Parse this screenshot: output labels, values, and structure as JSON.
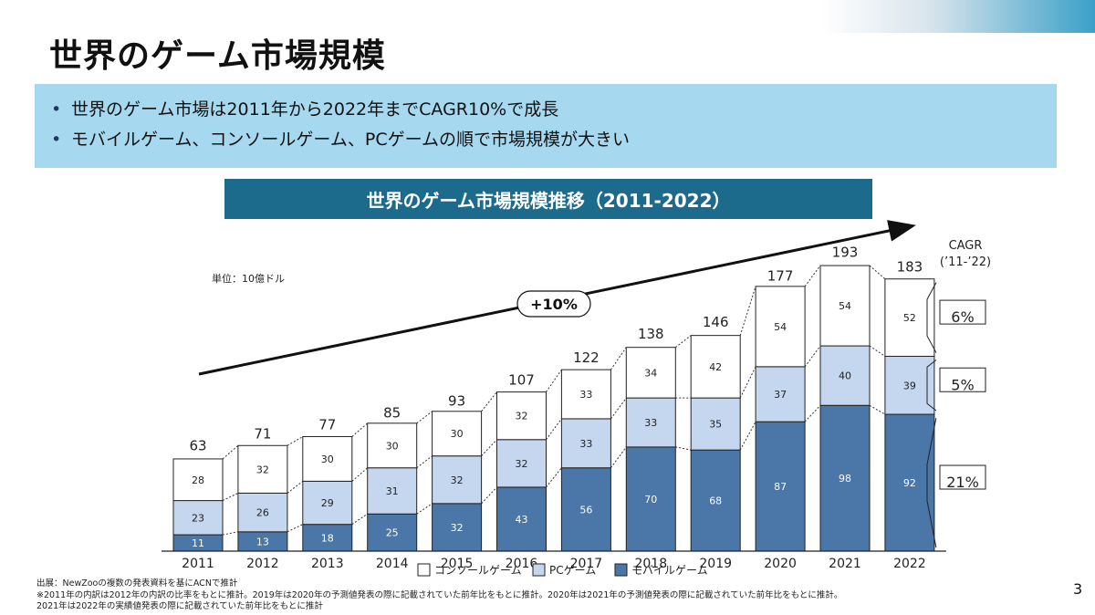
{
  "page": {
    "title": "世界のゲーム市場規模",
    "bullets": [
      "世界のゲーム市場は2011年から2022年までCAGR10%で成長",
      "モバイルゲーム、コンソールゲーム、PCゲームの順で市場規模が大きい"
    ],
    "chart_title": "世界のゲーム市場規模推移（2011-2022）",
    "footnotes": [
      "出展：NewZooの複数の発表資料を基にACNで推計",
      "※2011年の内訳は2012年の内訳の比率をもとに推計。2019年は2020年の予測値発表の際に記載されていた前年比をもとに推計。2020年は2021年の予測値発表の際に記載されていた前年比をもとに推計。",
      "2021年は2022年の実績値発表の際に記載されていた前年比をもとに推計"
    ],
    "page_number": "3"
  },
  "chart_data": {
    "type": "bar",
    "stacked": true,
    "unit_label": "単位：10億ドル",
    "categories": [
      "2011",
      "2012",
      "2013",
      "2014",
      "2015",
      "2016",
      "2017",
      "2018",
      "2019",
      "2020",
      "2021",
      "2022"
    ],
    "series": [
      {
        "name": "モバイルゲーム",
        "color": "#4a76a8",
        "values": [
          11,
          13,
          18,
          25,
          32,
          43,
          56,
          70,
          68,
          87,
          98,
          92
        ]
      },
      {
        "name": "PCゲーム",
        "color": "#c5d6ef",
        "values": [
          23,
          26,
          29,
          31,
          32,
          32,
          33,
          33,
          35,
          37,
          40,
          39
        ]
      },
      {
        "name": "コンソールゲーム",
        "color": "#ffffff",
        "values": [
          28,
          32,
          30,
          30,
          30,
          32,
          33,
          34,
          42,
          54,
          54,
          52
        ]
      }
    ],
    "totals": [
      63,
      71,
      77,
      85,
      93,
      107,
      122,
      138,
      146,
      177,
      193,
      183
    ],
    "ylim": [
      0,
      200
    ],
    "legend_order": [
      "コンソールゲーム",
      "PCゲーム",
      "モバイルゲーム"
    ],
    "legend_position": "bottom",
    "growth_label": "+10%",
    "cagr_header": [
      "CAGR",
      "(’11-’22)"
    ],
    "cagr_values": [
      {
        "series": "コンソールゲーム",
        "label": "6%"
      },
      {
        "series": "PCゲーム",
        "label": "5%"
      },
      {
        "series": "モバイルゲーム",
        "label": "21%"
      }
    ]
  }
}
